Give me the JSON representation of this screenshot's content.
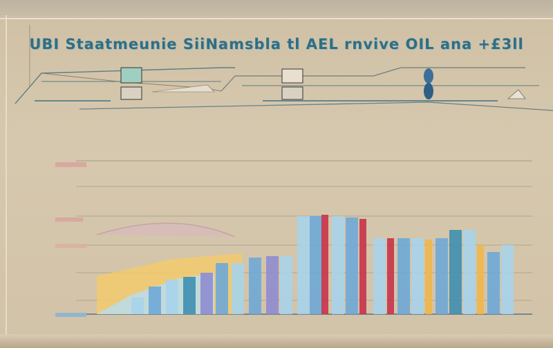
{
  "title": "UBI Staatmeunie SiiNamsbla tl AEL rnvive OIL ana +£3ll",
  "subtitle": "",
  "colors": {
    "teal": "#3f8fb0",
    "blue": "#6fa9d6",
    "sky": "#a7d3ea",
    "red": "#c9324a",
    "gold": "#f0b74a",
    "violet": "#8f8ccf",
    "grid": "#a89a82"
  }
}
